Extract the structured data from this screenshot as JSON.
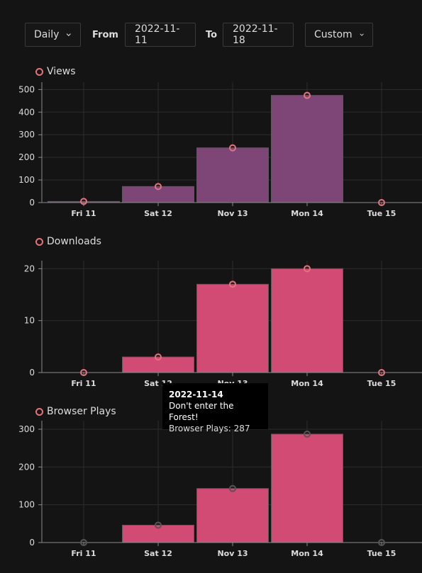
{
  "controls": {
    "granularity": "Daily",
    "from_label": "From",
    "from_date": "2022-11-11",
    "to_label": "To",
    "to_date": "2022-11-18",
    "range": "Custom"
  },
  "colors": {
    "views_bar": "#7e4577",
    "bar": "#d24b74",
    "point": "#e4737a",
    "grid": "#2c2c2c",
    "axis": "#8a8a8a"
  },
  "chart_data": [
    {
      "type": "bar",
      "title": "Views",
      "categories": [
        "Fri 11",
        "Sat 12",
        "Nov 13",
        "Mon 14",
        "Tue 15"
      ],
      "values": [
        5,
        71,
        242,
        474,
        0
      ],
      "yticks": [
        0,
        100,
        200,
        300,
        400,
        500
      ],
      "ylim": [
        0,
        520
      ],
      "grid": true
    },
    {
      "type": "bar",
      "title": "Downloads",
      "categories": [
        "Fri 11",
        "Sat 12",
        "Nov 13",
        "Mon 14",
        "Tue 15"
      ],
      "values": [
        0,
        3,
        17,
        20,
        0
      ],
      "yticks": [
        0,
        10,
        20
      ],
      "ylim": [
        0,
        21
      ],
      "grid": true
    },
    {
      "type": "bar",
      "title": "Browser Plays",
      "categories": [
        "Fri 11",
        "Sat 12",
        "Nov 13",
        "Mon 14",
        "Tue 15"
      ],
      "values": [
        0,
        46,
        143,
        287,
        0
      ],
      "yticks": [
        0,
        100,
        200,
        300
      ],
      "ylim": [
        0,
        315
      ],
      "grid": true
    }
  ],
  "tooltip": {
    "date": "2022-11-14",
    "name": "Don't enter the Forest!",
    "series_value": "Browser Plays: 287"
  }
}
